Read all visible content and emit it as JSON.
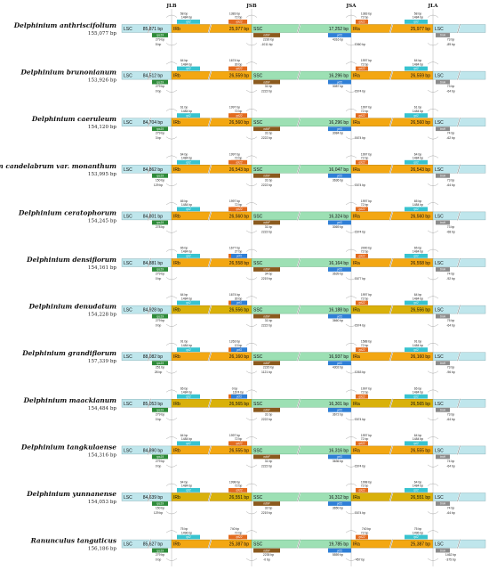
{
  "junction_headers": [
    "JLB",
    "JSB",
    "JSA",
    "JLA"
  ],
  "colors": {
    "LSC": "#bfe6ec",
    "IR": "#f3a712",
    "SSC": "#9de0b4",
    "IR_alt": "#d9b10a",
    "rps19": "#2e8b3a",
    "rpl2": "#38c3cf",
    "trnH": "#8c8c8c",
    "ndhF": "#8b5a1e",
    "ycf1": "#2f7fd6",
    "rpl22": "#e36b1f"
  },
  "rows": [
    {
      "species": "Delphinium anthriscifolium",
      "length": "155,077 bp",
      "lsc": "LSC",
      "lsc_len": "85,871 bp",
      "irb": "IRb",
      "irb_len": "25,977 bp",
      "ssc": "SSC",
      "ssc_len": "17,252 bp",
      "ira": "IRa",
      "ira_len": "25,977 bp",
      "lsc2": "LSC",
      "jlb_top": "58 bp",
      "jlb_mid": "1484 bp",
      "jlb_bot": "279 bp",
      "jlb_bot2": "5 bp",
      "jsb_top": "1383 bp",
      "jsb_mid": "72 bp",
      "jsb_bot": "2230 bp",
      "jsb_bot2": "-1011 bp",
      "jsa_top": "1383 bp",
      "jsa_mid": "72 bp",
      "jsa_bot": "4316 bp",
      "jsa_bot2": "1060 bp",
      "jla_top": "58 bp",
      "jla_mid": "1484 bp",
      "jla_bot": "73 bp",
      "jla_bot2": "-89 bp",
      "alt": false
    },
    {
      "species": "Delphinium brunonianum",
      "length": "153,926 bp",
      "lsc": "LSC",
      "lsc_len": "84,512 bp",
      "irb": "IRb",
      "irb_len": "26,559 bp",
      "ssc": "SSC",
      "ssc_len": "16,296 bp",
      "ira": "IRa",
      "ira_len": "26,559 bp",
      "lsc2": "LSC",
      "jlb_top": "64 bp",
      "jlb_mid": "1484 bp",
      "jlb_bot": "279 bp",
      "jlb_bot2": "0 bp",
      "jsb_top": "1674 bp",
      "jsb_mid": "30 bp",
      "jsb_bot": "31 bp",
      "jsb_bot2": "2222 bp",
      "jsa_top": "1997 bp",
      "jsa_mid": "72 bp",
      "jsa_bot": "3087 bp",
      "jsa_bot2": "1674 bp",
      "jla_top": "64 bp",
      "jla_mid": "1484 bp",
      "jla_bot": "73 bp",
      "jla_bot2": "-64 bp",
      "alt": false
    },
    {
      "species": "Delphinium caeruleum",
      "length": "154,120 bp",
      "lsc": "LSC",
      "lsc_len": "84,704 bp",
      "irb": "IRb",
      "irb_len": "26,560 bp",
      "ssc": "SSC",
      "ssc_len": "16,296 bp",
      "ira": "IRa",
      "ira_len": "26,560 bp",
      "lsc2": "LSC",
      "jlb_top": "61 bp",
      "jlb_mid": "1484 bp",
      "jlb_bot": "279 bp",
      "jlb_bot2": "3 bp",
      "jsb_top": "1997 bp",
      "jsb_mid": "72 bp",
      "jsb_bot": "31 bp",
      "jsb_bot2": "2222 bp",
      "jsa_top": "1997 bp",
      "jsa_mid": "72 bp",
      "jsa_bot": "3084 bp",
      "jsa_bot2": "1674 bp",
      "jla_top": "61 bp",
      "jla_mid": "1484 bp",
      "jla_bot": "74 bp",
      "jla_bot2": "-62 bp",
      "alt": false
    },
    {
      "species": "Delphinium candelabrum var. monanthum",
      "length": "153,995 bp",
      "lsc": "LSC",
      "lsc_len": "84,862 bp",
      "irb": "IRb",
      "irb_len": "26,543 bp",
      "ssc": "SSC",
      "ssc_len": "16,047 bp",
      "ira": "IRa",
      "ira_len": "26,543 bp",
      "lsc2": "LSC",
      "jlb_top": "64 bp",
      "jlb_mid": "1484 bp",
      "jlb_bot": "150 bp",
      "jlb_bot2": "129 bp",
      "jsb_top": "1997 bp",
      "jsb_mid": "72 bp",
      "jsb_bot": "31 bp",
      "jsb_bot2": "2222 bp",
      "jsa_top": "1997 bp",
      "jsa_mid": "72 bp",
      "jsa_bot": "3636 bp",
      "jsa_bot2": "1674 bp",
      "jla_top": "64 bp",
      "jla_mid": "1484 bp",
      "jla_bot": "73 bp",
      "jla_bot2": "-64 bp",
      "alt": false
    },
    {
      "species": "Delphinium ceratophorum",
      "length": "154,245 bp",
      "lsc": "LSC",
      "lsc_len": "84,801 bp",
      "irb": "IRb",
      "irb_len": "26,560 bp",
      "ssc": "SSC",
      "ssc_len": "16,324 bp",
      "ira": "IRa",
      "ira_len": "26,560 bp",
      "lsc2": "LSC",
      "jlb_top": "65 bp",
      "jlb_mid": "1484 bp",
      "jlb_bot": "278 bp",
      "jlb_bot2": "",
      "jsb_top": "1997 bp",
      "jsb_mid": "72 bp",
      "jsb_bot": "31 bp",
      "jsb_bot2": "2222 bp",
      "jsa_top": "1997 bp",
      "jsa_mid": "72 bp",
      "jsa_bot": "3069 bp",
      "jsa_bot2": "1674 bp",
      "jla_top": "65 bp",
      "jla_mid": "1484 bp",
      "jla_bot": "73 bp",
      "jla_bot2": "-68 bp",
      "alt": false
    },
    {
      "species": "Delphinium densiflorum",
      "length": "154,161 bp",
      "lsc": "LSC",
      "lsc_len": "84,881 bp",
      "irb": "IRb",
      "irb_len": "26,558 bp",
      "ssc": "SSC",
      "ssc_len": "16,164 bp",
      "ira": "IRa",
      "ira_len": "26,558 bp",
      "lsc2": "LSC",
      "jlb_top": "65 bp",
      "jlb_mid": "1484 bp",
      "jlb_bot": "279 bp",
      "jlb_bot2": "0 bp",
      "jsb_top": "1677 bp",
      "jsb_mid": "27 bp",
      "jsb_bot": "34 bp",
      "jsb_bot2": "2219 bp",
      "jsa_top": "2000 bp",
      "jsa_mid": "72 bp",
      "jsa_bot": "3639 bp",
      "jsa_bot2": "1677 bp",
      "jla_top": "65 bp",
      "jla_mid": "1484 bp",
      "jla_bot": "74 bp",
      "jla_bot2": "-92 bp",
      "alt": false
    },
    {
      "species": "Delphinium denudatum",
      "length": "154,228 bp",
      "lsc": "LSC",
      "lsc_len": "84,928 bp",
      "irb": "IRb",
      "irb_len": "26,556 bp",
      "ssc": "SSC",
      "ssc_len": "16,188 bp",
      "ira": "IRa",
      "ira_len": "26,556 bp",
      "lsc2": "LSC",
      "jlb_top": "64 bp",
      "jlb_mid": "1484 bp",
      "jlb_bot": "279 bp",
      "jlb_bot2": "0 bp",
      "jsb_top": "1674 bp",
      "jsb_mid": "30 bp",
      "jsb_bot": "31 bp",
      "jsb_bot2": "2222 bp",
      "jsa_top": "1997 bp",
      "jsa_mid": "72 bp",
      "jsa_bot": "3660 bp",
      "jsa_bot2": "1674 bp",
      "jla_top": "64 bp",
      "jla_mid": "1484 bp",
      "jla_bot": "75 bp",
      "jla_bot2": "-64 bp",
      "alt": true
    },
    {
      "species": "Delphinium grandiflorum",
      "length": "157,339 bp",
      "lsc": "LSC",
      "lsc_len": "88,082 bp",
      "irb": "IRb",
      "irb_len": "26,160 bp",
      "ssc": "SSC",
      "ssc_len": "16,937 bp",
      "ira": "IRa",
      "ira_len": "26,160 bp",
      "lsc2": "LSC",
      "jlb_top": "91 bp",
      "jlb_mid": "1484 bp",
      "jlb_bot": "251 bp",
      "jlb_bot2": "28 bp",
      "jsb_top": "1263 bp",
      "jsb_mid": "13 bp",
      "jsb_bot": "2220 bp",
      "jsb_bot2": "1121 bp",
      "jsa_top": "1588 bp",
      "jsa_mid": "72 bp",
      "jsa_bot": "4302 bp",
      "jsa_bot2": "1263 bp",
      "jla_top": "91 bp",
      "jla_mid": "1484 bp",
      "jla_bot": "73 bp",
      "jla_bot2": "-96 bp",
      "alt": false
    },
    {
      "species": "Delphinium maackianum",
      "length": "154,484 bp",
      "lsc": "LSC",
      "lsc_len": "85,053 bp",
      "irb": "IRb",
      "irb_len": "26,565 bp",
      "ssc": "SSC",
      "ssc_len": "16,301 bp",
      "ira": "IRa",
      "ira_len": "26,565 bp",
      "lsc2": "LSC",
      "jlb_top": "65 bp",
      "jlb_mid": "1484 bp",
      "jlb_bot": "279 bp",
      "jlb_bot2": "0 bp",
      "jsb_top": "0 bp",
      "jsb_mid": "1674 bp",
      "jsb_bot": "31 bp",
      "jsb_bot2": "2222 bp",
      "jsa_top": "1997 bp",
      "jsa_mid": "72 bp",
      "jsa_bot": "3672 bp",
      "jsa_bot2": "1674 bp",
      "jla_top": "65 bp",
      "jla_mid": "1484 bp",
      "jla_bot": "73 bp",
      "jla_bot2": "-64 bp",
      "alt": true
    },
    {
      "species": "Delphinium tangkulaense",
      "length": "154,316 bp",
      "lsc": "LSC",
      "lsc_len": "84,890 bp",
      "irb": "IRb",
      "irb_len": "26,555 bp",
      "ssc": "SSC",
      "ssc_len": "16,316 bp",
      "ira": "IRa",
      "ira_len": "26,555 bp",
      "lsc2": "LSC",
      "jlb_top": "64 bp",
      "jlb_mid": "1484 bp",
      "jlb_bot": "279 bp",
      "jlb_bot2": "0 bp",
      "jsb_top": "1997 bp",
      "jsb_mid": "72 bp",
      "jsb_bot": "31 bp",
      "jsb_bot2": "2222 bp",
      "jsa_top": "1997 bp",
      "jsa_mid": "72 bp",
      "jsa_bot": "3636 bp",
      "jsa_bot2": "1674 bp",
      "jla_top": "64 bp",
      "jla_mid": "1484 bp",
      "jla_bot": "74 bp",
      "jla_bot2": "-64 bp",
      "alt": false
    },
    {
      "species": "Delphinium yunnanense",
      "length": "154,053 bp",
      "lsc": "LSC",
      "lsc_len": "84,639 bp",
      "irb": "IRb",
      "irb_len": "26,551 bp",
      "ssc": "SSC",
      "ssc_len": "16,312 bp",
      "ira": "IRa",
      "ira_len": "26,551 bp",
      "lsc2": "LSC",
      "jlb_top": "64 bp",
      "jlb_mid": "1484 bp",
      "jlb_bot": "150 bp",
      "jlb_bot2": "129 bp",
      "jsb_top": "1998 bp",
      "jsb_mid": "72 bp",
      "jsb_bot": "32 bp",
      "jsb_bot2": "2219 bp",
      "jsa_top": "1998 bp",
      "jsa_mid": "72 bp",
      "jsa_bot": "3650 bp",
      "jsa_bot2": "1674 bp",
      "jla_top": "64 bp",
      "jla_mid": "1484 bp",
      "jla_bot": "74 bp",
      "jla_bot2": "-64 bp",
      "alt": true
    },
    {
      "species": "Ranunculus tanguticus",
      "length": "156,186 bp",
      "lsc": "LSC",
      "lsc_len": "85,627 bp",
      "irb": "IRb",
      "irb_len": "25,387 bp",
      "ssc": "SSC",
      "ssc_len": "19,785 bp",
      "ira": "IRa",
      "ira_len": "25,387 bp",
      "lsc2": "LSC",
      "jlb_top": "75 bp",
      "jlb_mid": "1496 bp",
      "jlb_bot": "279 bp",
      "jlb_bot2": "0 bp",
      "jsb_top": "740 bp",
      "jsb_mid": "72 bp",
      "jsb_bot": "2235 bp",
      "jsb_bot2": "-0 bp",
      "jsa_top": "740 bp",
      "jsa_mid": "72 bp",
      "jsa_bot": "5559 bp",
      "jsa_bot2": "457 bp",
      "jla_top": "75 bp",
      "jla_mid": "1496 bp",
      "jla_bot": "1462 bp",
      "jla_bot2": "-375 bp",
      "alt": false
    }
  ],
  "gene_labels": {
    "rps19": "rps19",
    "rpl2": "rpl2",
    "ycf1": "ycf1",
    "ndhF": "ndhF",
    "rpl22": "rpl22",
    "trnH": "trnH",
    "trnN": "trnN"
  }
}
